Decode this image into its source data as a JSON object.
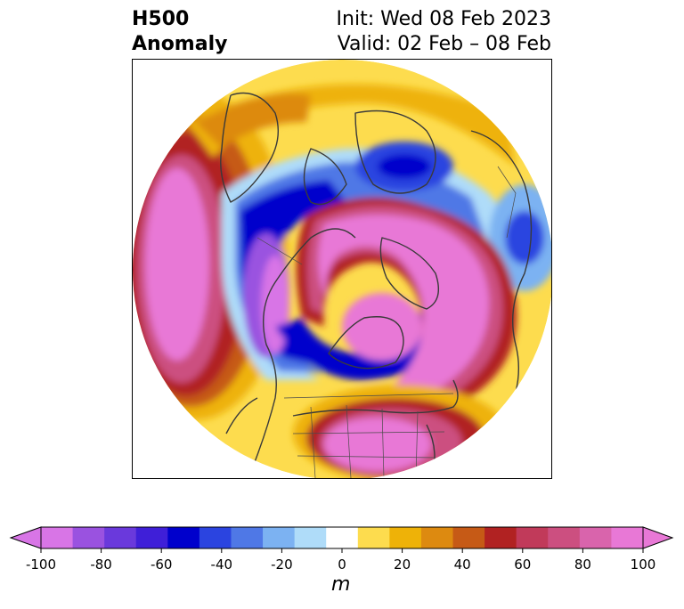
{
  "title": {
    "left_line1": "H500",
    "left_line2": "Anomaly",
    "right_line1": "Init: Wed 08 Feb 2023",
    "right_line2": "Valid: 02 Feb – 08 Feb"
  },
  "colorbar": {
    "units": "m",
    "ticks": [
      "-100",
      "-80",
      "-60",
      "-40",
      "-20",
      "0",
      "20",
      "40",
      "60",
      "80",
      "100"
    ],
    "levels": [
      -100,
      -90,
      -80,
      -70,
      -60,
      -50,
      -40,
      -30,
      -20,
      -10,
      10,
      20,
      30,
      40,
      50,
      60,
      70,
      80,
      90,
      100
    ],
    "colors": [
      "#d875e6",
      "#9a52e0",
      "#6a39dc",
      "#3f1fd8",
      "#0000cc",
      "#2b44e0",
      "#4f78e6",
      "#7cb2f2",
      "#afdcf9",
      "#ffffff",
      "#fddc4e",
      "#eeb208",
      "#dd8a10",
      "#c65a16",
      "#b12222",
      "#c13a5a",
      "#cc4f80",
      "#d964ac",
      "#e878d6"
    ],
    "under_color": "#d875e6",
    "over_color": "#e878d6"
  },
  "map": {
    "projection": "north-polar-stereographic",
    "features": [
      "coastlines",
      "country-borders",
      "state-borders"
    ],
    "anomaly_centers": [
      {
        "region": "north-pacific",
        "sign": "positive",
        "value_m": 100
      },
      {
        "region": "western-canada",
        "sign": "negative",
        "value_m": -60
      },
      {
        "region": "hudson-bay",
        "sign": "negative",
        "value_m": -100
      },
      {
        "region": "siberia",
        "sign": "positive",
        "value_m": 100
      },
      {
        "region": "arctic-ocean",
        "sign": "positive",
        "value_m": 100
      },
      {
        "region": "north-atlantic",
        "sign": "negative",
        "value_m": -60
      },
      {
        "region": "southeastern-us",
        "sign": "positive",
        "value_m": 100
      }
    ]
  }
}
